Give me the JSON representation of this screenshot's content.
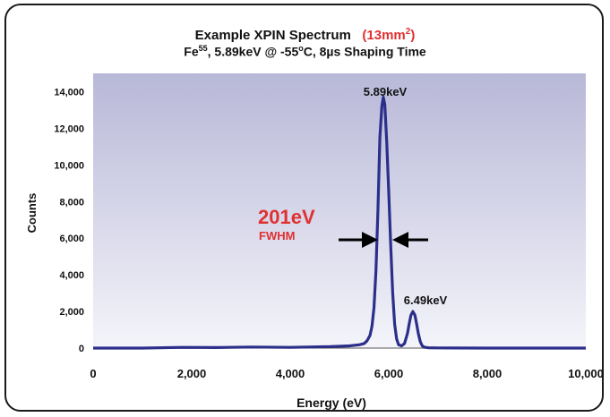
{
  "chart_data": {
    "type": "line",
    "title_main": "Example XPIN Spectrum",
    "title_area_prefix": "(13mm",
    "title_area_sup": "2",
    "title_area_suffix": ")",
    "subtitle_fe": "Fe",
    "subtitle_iso": "55",
    "subtitle_mid": ", 5.89keV @ -55",
    "subtitle_deg": "o",
    "subtitle_end": "C, 8µs Shaping Time",
    "xlabel": "Energy (eV)",
    "ylabel": "Counts",
    "xlim": [
      0,
      10000
    ],
    "ylim": [
      0,
      15000
    ],
    "xticks": [
      0,
      2000,
      4000,
      6000,
      8000,
      10000
    ],
    "xtick_labels": [
      "0",
      "2,000",
      "4,000",
      "6,000",
      "8,000",
      "10,000"
    ],
    "yticks": [
      0,
      2000,
      4000,
      6000,
      8000,
      10000,
      12000,
      14000
    ],
    "ytick_labels": [
      "0",
      "2,000",
      "4,000",
      "6,000",
      "8,000",
      "10,000",
      "12,000",
      "14,000"
    ],
    "grid": false,
    "series": [
      {
        "color": "#2b2f8a",
        "x": [
          0,
          1000,
          1800,
          2500,
          3200,
          4000,
          4800,
          5200,
          5400,
          5500,
          5560,
          5620,
          5660,
          5700,
          5740,
          5780,
          5820,
          5860,
          5890,
          5920,
          5960,
          6000,
          6040,
          6080,
          6120,
          6160,
          6200,
          6260,
          6320,
          6380,
          6420,
          6450,
          6490,
          6530,
          6560,
          6600,
          6640,
          6680,
          6720,
          6800,
          7000,
          8000,
          9000,
          10000
        ],
        "y": [
          0,
          0,
          40,
          30,
          60,
          40,
          80,
          120,
          180,
          250,
          400,
          700,
          1200,
          2200,
          4200,
          7500,
          11500,
          13200,
          13700,
          13300,
          11200,
          8500,
          5600,
          3000,
          1300,
          500,
          180,
          120,
          250,
          800,
          1400,
          1800,
          2000,
          1800,
          1400,
          800,
          350,
          120,
          50,
          20,
          10,
          0,
          0,
          0
        ]
      }
    ],
    "annotations": {
      "peak1_label": "5.89keV",
      "peak2_label": "6.49keV",
      "fwhm_value": "201eV",
      "fwhm_label": "FWHM"
    }
  }
}
